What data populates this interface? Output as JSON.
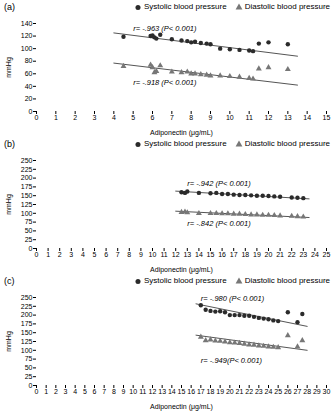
{
  "chart_data": [
    {
      "type": "scatter",
      "title": "(a)",
      "x_label": "Adiponectin (μg/mL)",
      "y_label": "mmHg",
      "xlim": [
        0,
        15
      ],
      "ylim": [
        0,
        140
      ],
      "xticks": [
        0,
        1,
        2,
        3,
        4,
        5,
        6,
        7,
        8,
        9,
        10,
        11,
        12,
        13,
        14,
        15
      ],
      "yticks": [
        0,
        20,
        40,
        60,
        80,
        100,
        120,
        140
      ],
      "grid": false,
      "legend": "top right",
      "series": [
        {
          "name": "Systolic blood pressure",
          "color": "#2b2b2b",
          "marker": "circle",
          "x": [
            4.5,
            5.9,
            6.0,
            6.1,
            6.2,
            6.4,
            7.0,
            7.5,
            7.8,
            8.0,
            8.2,
            8.5,
            8.8,
            9.0,
            9.5,
            10.0,
            10.5,
            11.0,
            11.2,
            11.5,
            12.0,
            13.0
          ],
          "values": [
            119,
            120,
            121,
            118,
            116,
            122,
            115,
            113,
            112,
            110,
            111,
            109,
            108,
            107,
            100,
            99,
            98,
            97,
            96,
            108,
            110,
            107
          ]
        },
        {
          "name": "Diastolic blood pressure",
          "color": "#777777",
          "marker": "triangle",
          "x": [
            4.5,
            5.9,
            6.0,
            6.1,
            6.2,
            6.4,
            7.0,
            7.5,
            7.8,
            8.0,
            8.2,
            8.5,
            8.8,
            9.0,
            9.5,
            10.0,
            10.5,
            11.0,
            11.2,
            11.5,
            12.0,
            13.0
          ],
          "values": [
            72,
            74,
            70,
            62,
            64,
            73,
            63,
            62,
            63,
            60,
            60,
            59,
            58,
            57,
            57,
            56,
            55,
            53,
            52,
            68,
            70,
            67
          ]
        }
      ],
      "regression_lines": [
        {
          "color": "#555555",
          "x": [
            4.0,
            13.5
          ],
          "y": [
            125,
            88
          ]
        },
        {
          "color": "#555555",
          "x": [
            4.0,
            13.5
          ],
          "y": [
            77,
            42
          ]
        }
      ],
      "annotations": [
        {
          "text": "r= -.963 (P< 0.001)",
          "x": 5.0,
          "y": 128
        },
        {
          "text": "r= -.918 (P< 0.001)",
          "x": 5.0,
          "y": 42
        }
      ]
    },
    {
      "type": "scatter",
      "title": "(b)",
      "x_label": "Adiponectin (μg/mL)",
      "y_label": "mmHg",
      "xlim": [
        0,
        25
      ],
      "ylim": [
        0,
        250
      ],
      "xticks": [
        0,
        1,
        2,
        3,
        4,
        5,
        6,
        7,
        8,
        9,
        10,
        11,
        12,
        13,
        14,
        15,
        16,
        17,
        18,
        19,
        20,
        21,
        22,
        23,
        24,
        25
      ],
      "yticks": [
        0,
        25,
        50,
        75,
        100,
        125,
        150,
        175,
        200,
        225,
        250
      ],
      "grid": false,
      "legend": "top right",
      "series": [
        {
          "name": "Systolic blood pressure",
          "color": "#2b2b2b",
          "marker": "circle",
          "x": [
            12.5,
            12.8,
            13.0,
            14.0,
            15.0,
            15.5,
            16.0,
            16.5,
            17.0,
            17.5,
            18.0,
            18.5,
            19.0,
            19.5,
            20.0,
            20.5,
            21.0,
            22.0,
            22.5,
            23.0
          ],
          "values": [
            160,
            158,
            162,
            158,
            157,
            158,
            155,
            155,
            153,
            152,
            152,
            151,
            150,
            150,
            149,
            148,
            147,
            145,
            144,
            143
          ]
        },
        {
          "name": "Diastolic blood pressure",
          "color": "#777777",
          "marker": "triangle",
          "x": [
            12.5,
            12.8,
            13.0,
            14.0,
            15.0,
            15.5,
            16.0,
            16.5,
            17.0,
            17.5,
            18.0,
            18.5,
            19.0,
            19.5,
            20.0,
            20.5,
            21.0,
            22.0,
            22.5,
            23.0
          ],
          "values": [
            103,
            104,
            102,
            100,
            100,
            100,
            99,
            99,
            98,
            98,
            97,
            96,
            96,
            95,
            95,
            94,
            93,
            92,
            91,
            90
          ]
        }
      ],
      "regression_lines": [
        {
          "color": "#555555",
          "x": [
            12.0,
            23.5
          ],
          "y": [
            163,
            141
          ]
        },
        {
          "color": "#555555",
          "x": [
            12.0,
            23.5
          ],
          "y": [
            106,
            88
          ]
        }
      ],
      "annotations": [
        {
          "text": "r= -.942 (P< 0.001)",
          "x": 13.0,
          "y": 178
        },
        {
          "text": "r= -.842 (P< 0.001)",
          "x": 13.0,
          "y": 65
        }
      ]
    },
    {
      "type": "scatter",
      "title": "(c)",
      "x_label": "Adiponectin (μg/mL)",
      "y_label": "mmHg",
      "xlim": [
        0,
        30
      ],
      "ylim": [
        0,
        250
      ],
      "xticks": [
        0,
        1,
        2,
        3,
        4,
        5,
        6,
        7,
        8,
        9,
        10,
        11,
        12,
        13,
        14,
        15,
        16,
        17,
        18,
        19,
        20,
        21,
        22,
        23,
        24,
        25,
        26,
        27,
        28,
        29,
        30
      ],
      "yticks": [
        0,
        25,
        50,
        75,
        100,
        125,
        150,
        175,
        200,
        225,
        250
      ],
      "grid": false,
      "legend": "top right",
      "series": [
        {
          "name": "Systolic blood pressure",
          "color": "#2b2b2b",
          "marker": "circle",
          "x": [
            17.0,
            17.5,
            18.0,
            18.5,
            19.0,
            19.5,
            20.0,
            20.5,
            21.0,
            21.5,
            22.0,
            22.5,
            23.0,
            23.5,
            24.0,
            24.5,
            25.0,
            26.0,
            27.0,
            27.5
          ],
          "values": [
            228,
            215,
            212,
            210,
            211,
            208,
            200,
            200,
            200,
            198,
            198,
            195,
            192,
            190,
            188,
            185,
            183,
            208,
            180,
            203
          ]
        },
        {
          "name": "Diastolic blood pressure",
          "color": "#777777",
          "marker": "triangle",
          "x": [
            17.0,
            17.5,
            18.0,
            18.5,
            19.0,
            19.5,
            20.0,
            20.5,
            21.0,
            21.5,
            22.0,
            22.5,
            23.0,
            23.5,
            24.0,
            24.5,
            25.0,
            26.0,
            27.0,
            27.5
          ],
          "values": [
            138,
            128,
            130,
            127,
            126,
            124,
            122,
            121,
            120,
            118,
            116,
            115,
            113,
            112,
            110,
            109,
            108,
            142,
            110,
            128
          ]
        }
      ],
      "regression_lines": [
        {
          "color": "#555555",
          "x": [
            16.5,
            28.0
          ],
          "y": [
            232,
            168
          ]
        },
        {
          "color": "#555555",
          "x": [
            16.5,
            28.0
          ],
          "y": [
            143,
            100
          ]
        }
      ],
      "annotations": [
        {
          "text": "r= -.980 (P< 0.001)",
          "x": 17.0,
          "y": 240
        },
        {
          "text": "r= -.949(P< 0.001)",
          "x": 17.0,
          "y": 65
        }
      ]
    }
  ]
}
